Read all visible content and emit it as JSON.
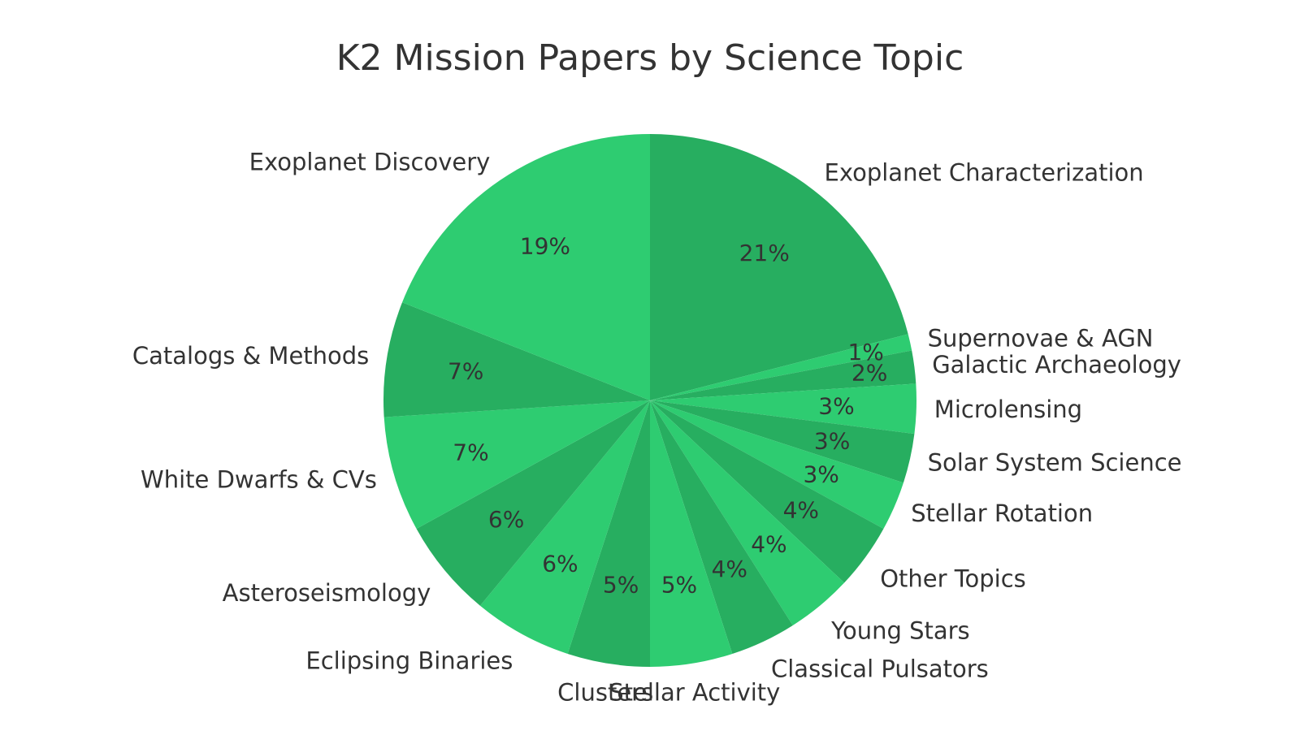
{
  "chart_data": {
    "type": "pie",
    "title": "K2 Mission Papers by Science Topic",
    "direction": "clockwise",
    "start_angle_deg": 0,
    "colors": {
      "light": "#2ecc71",
      "dark": "#27ae60",
      "text": "#333333"
    },
    "slices": [
      {
        "label": "Exoplanet Characterization",
        "value": 21,
        "pct_label": "21%"
      },
      {
        "label": "Supernovae & AGN",
        "value": 1,
        "pct_label": "1%"
      },
      {
        "label": "Galactic Archaeology",
        "value": 2,
        "pct_label": "2%"
      },
      {
        "label": "Microlensing",
        "value": 3,
        "pct_label": "3%"
      },
      {
        "label": "Solar System Science",
        "value": 3,
        "pct_label": "3%"
      },
      {
        "label": "Stellar Rotation",
        "value": 3,
        "pct_label": "3%"
      },
      {
        "label": "Other Topics",
        "value": 4,
        "pct_label": "4%"
      },
      {
        "label": "Young Stars",
        "value": 4,
        "pct_label": "4%"
      },
      {
        "label": "Classical Pulsators",
        "value": 4,
        "pct_label": "4%"
      },
      {
        "label": "Stellar Activity",
        "value": 5,
        "pct_label": "5%"
      },
      {
        "label": "Clusters",
        "value": 5,
        "pct_label": "5%"
      },
      {
        "label": "Eclipsing Binaries",
        "value": 6,
        "pct_label": "6%"
      },
      {
        "label": "Asteroseismology",
        "value": 6,
        "pct_label": "6%"
      },
      {
        "label": "White Dwarfs & CVs",
        "value": 7,
        "pct_label": "7%"
      },
      {
        "label": "Catalogs & Methods",
        "value": 7,
        "pct_label": "7%"
      },
      {
        "label": "Exoplanet Discovery",
        "value": 19,
        "pct_label": "19%"
      }
    ]
  }
}
